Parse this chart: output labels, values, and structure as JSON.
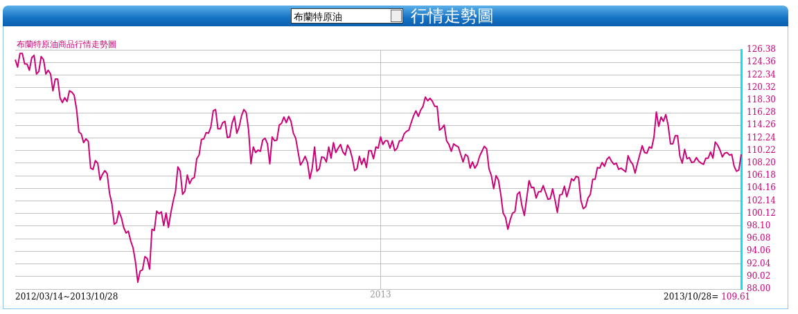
{
  "chart_data": {
    "type": "line",
    "title": "布蘭特原油商品行情走勢圖",
    "subtitle": "行情走勢圖",
    "annotations": [
      "布蘭特原油",
      "2012/03/14~2013/10/28",
      "2013/10/28=",
      "109.61"
    ],
    "grid": true,
    "ylim": [
      88,
      126.38
    ],
    "yticks": [
      {
        "value": 88,
        "label": "88.00"
      },
      {
        "value": 90.02,
        "label": "90.02"
      },
      {
        "value": 92.04,
        "label": "92.04"
      },
      {
        "value": 94.06,
        "label": "94.06"
      },
      {
        "value": 96.08,
        "label": "96.08"
      },
      {
        "value": 98.1,
        "label": "98.10"
      },
      {
        "value": 100.12,
        "label": "100.12"
      },
      {
        "value": 102.14,
        "label": "102.14"
      },
      {
        "value": 104.16,
        "label": "104.16"
      },
      {
        "value": 106.18,
        "label": "106.18"
      },
      {
        "value": 108.2,
        "label": "108.20"
      },
      {
        "value": 110.22,
        "label": "110.22"
      },
      {
        "value": 112.24,
        "label": "112.24"
      },
      {
        "value": 114.26,
        "label": "114.26"
      },
      {
        "value": 116.28,
        "label": "116.28"
      },
      {
        "value": 118.3,
        "label": "118.30"
      },
      {
        "value": 120.32,
        "label": "120.32"
      },
      {
        "value": 122.34,
        "label": "122.34"
      },
      {
        "value": 124.36,
        "label": "124.36"
      },
      {
        "value": 126.38,
        "label": "126.38"
      }
    ],
    "categories": [
      null,
      null,
      null,
      null,
      null,
      null,
      null,
      null,
      null,
      null,
      null,
      null,
      null,
      null,
      null,
      null,
      null,
      null,
      null,
      null,
      null,
      null,
      null,
      null,
      null,
      null,
      null,
      null,
      null,
      null,
      null,
      null,
      null,
      null,
      null,
      null,
      null,
      null,
      null,
      null,
      null,
      null,
      null,
      null,
      null,
      null,
      null,
      null,
      null,
      null,
      null,
      null,
      null,
      null,
      null,
      null,
      null,
      null,
      null,
      null,
      null,
      null,
      null,
      null,
      null,
      null,
      null,
      null,
      null,
      null,
      null,
      null,
      null,
      null,
      null,
      null,
      null,
      null,
      null,
      null,
      null,
      null,
      null,
      null,
      null,
      null,
      null,
      null,
      null,
      null,
      null,
      null,
      null,
      null,
      null,
      null,
      null,
      null,
      null,
      null,
      null,
      null,
      null,
      null,
      null,
      null,
      null,
      null,
      null,
      null,
      null,
      null,
      null,
      null,
      null,
      null,
      null,
      null,
      null,
      null,
      null,
      null,
      null,
      null,
      null,
      null,
      null,
      null,
      null,
      null,
      null,
      null,
      null,
      null,
      null,
      null,
      null,
      null,
      null,
      null,
      null,
      null,
      null,
      null,
      null,
      null,
      null,
      null,
      null,
      null,
      null,
      null,
      null,
      null,
      null,
      "2013",
      null,
      null,
      null,
      null,
      null,
      null,
      null,
      null,
      null,
      null,
      null,
      null,
      null,
      null,
      null,
      null,
      null,
      null,
      null,
      null,
      null,
      null,
      null,
      null,
      null,
      null,
      null,
      null,
      null,
      null,
      null,
      null,
      null,
      null,
      null,
      null,
      null,
      null,
      null,
      null,
      null,
      null,
      null,
      null,
      null,
      null,
      null,
      null,
      null,
      null,
      null,
      null,
      null,
      null,
      null,
      null,
      null,
      null,
      null,
      null,
      null,
      null,
      null,
      null,
      null,
      null,
      null,
      null,
      null,
      null,
      null,
      null,
      null,
      null,
      null,
      null,
      null,
      null,
      null,
      null,
      null,
      null,
      null,
      null,
      null,
      null,
      null,
      null,
      null,
      null,
      null,
      null,
      null,
      null,
      null,
      null,
      null,
      null,
      null,
      null,
      null,
      null,
      null,
      null,
      null,
      null,
      null,
      null,
      null,
      null,
      null,
      null,
      null,
      null,
      null,
      null,
      null,
      null,
      null,
      null,
      null,
      null,
      null,
      null,
      null,
      null,
      null,
      null,
      null,
      null,
      null,
      null,
      null,
      null,
      null,
      null,
      null,
      null,
      null,
      null,
      null,
      null,
      null,
      null,
      null,
      null,
      null,
      null,
      null,
      null,
      null,
      null,
      null
    ],
    "series": [
      {
        "color": "#cc0077",
        "values": [
          124.8,
          123.6,
          125.8,
          125.8,
          124.1,
          124.1,
          123.1,
          125.1,
          125.5,
          122.5,
          122.9,
          125.3,
          124.8,
          122.5,
          123.1,
          122.5,
          119.8,
          121.7,
          121.7,
          118.7,
          117.9,
          118.7,
          118.1,
          119.8,
          119.6,
          119.1,
          116.9,
          113.2,
          112.9,
          111.5,
          112.1,
          111.7,
          107.4,
          107.2,
          108.6,
          108.2,
          105.5,
          106.4,
          107.0,
          106.5,
          103.4,
          101.7,
          98.4,
          98.7,
          100.5,
          99.5,
          97.9,
          97.0,
          97.3,
          95.7,
          94.6,
          92.4,
          89.1,
          90.9,
          91.1,
          93.2,
          92.9,
          91.2,
          97.6,
          97.4,
          100.5,
          100.1,
          100.4,
          98.2,
          100.2,
          97.9,
          100.2,
          102.1,
          103.7,
          107.6,
          106.9,
          103.2,
          103.7,
          106.3,
          104.9,
          105.7,
          105.9,
          108.9,
          109.5,
          112.0,
          112.1,
          113.1,
          113.0,
          114.0,
          116.6,
          116.8,
          113.7,
          113.7,
          114.7,
          114.9,
          112.3,
          112.4,
          114.6,
          115.7,
          113.0,
          114.0,
          115.8,
          116.8,
          116.3,
          113.5,
          108.1,
          110.8,
          109.9,
          110.3,
          110.1,
          111.9,
          112.2,
          111.3,
          108.1,
          112.4,
          111.8,
          111.9,
          114.3,
          114.6,
          115.6,
          114.7,
          115.7,
          114.9,
          113.0,
          112.2,
          110.0,
          107.9,
          108.5,
          109.3,
          108.3,
          105.7,
          107.4,
          110.8,
          106.9,
          107.3,
          109.2,
          109.1,
          108.4,
          110.8,
          109.0,
          111.5,
          109.9,
          110.6,
          111.2,
          110.0,
          109.5,
          111.1,
          110.4,
          109.0,
          107.0,
          107.3,
          109.3,
          108.0,
          109.0,
          107.5,
          110.2,
          110.2,
          108.9,
          110.8,
          110.6,
          112.4,
          111.2,
          111.8,
          111.8,
          110.6,
          111.8,
          110.2,
          110.6,
          111.8,
          111.8,
          112.9,
          113.3,
          113.5,
          114.7,
          115.8,
          116.6,
          115.7,
          116.7,
          117.3,
          118.8,
          118.2,
          118.6,
          118.1,
          117.3,
          117.3,
          113.5,
          113.8,
          114.3,
          111.8,
          111.2,
          110.1,
          111.3,
          111.0,
          110.8,
          109.6,
          108.4,
          109.6,
          109.3,
          107.4,
          108.4,
          107.4,
          108.0,
          109.3,
          110.1,
          110.9,
          110.5,
          107.3,
          106.2,
          104.1,
          106.2,
          105.5,
          103.2,
          100.2,
          99.5,
          97.6,
          99.1,
          100.2,
          100.4,
          103.2,
          103.6,
          101.3,
          99.8,
          102.6,
          105.4,
          104.3,
          104.3,
          102.6,
          103.6,
          103.6,
          104.6,
          103.5,
          102.4,
          102.5,
          104.1,
          102.3,
          100.3,
          103.1,
          103.2,
          104.5,
          102.8,
          104.1,
          105.7,
          105.4,
          106.1,
          105.9,
          102.2,
          100.9,
          101.2,
          102.6,
          103.2,
          105.6,
          105.6,
          107.5,
          107.4,
          108.3,
          107.7,
          108.8,
          109.2,
          108.5,
          108.0,
          108.2,
          107.2,
          107.4,
          107.1,
          106.8,
          109.4,
          108.5,
          108.0,
          106.6,
          108.2,
          109.6,
          111.0,
          109.9,
          109.8,
          110.8,
          110.6,
          112.4,
          116.4,
          114.1,
          115.6,
          114.9,
          116.0,
          114.3,
          111.3,
          111.3,
          112.6,
          112.6,
          109.3,
          108.2,
          110.4,
          108.9,
          109.1,
          108.3,
          108.4,
          109.1,
          108.5,
          108.2,
          108.0,
          109.0,
          109.0,
          110.0,
          109.0,
          111.6,
          111.1,
          110.3,
          109.2,
          109.8,
          109.9,
          109.5,
          109.6,
          107.7,
          106.9,
          107.1,
          109.6
        ]
      }
    ]
  }
}
